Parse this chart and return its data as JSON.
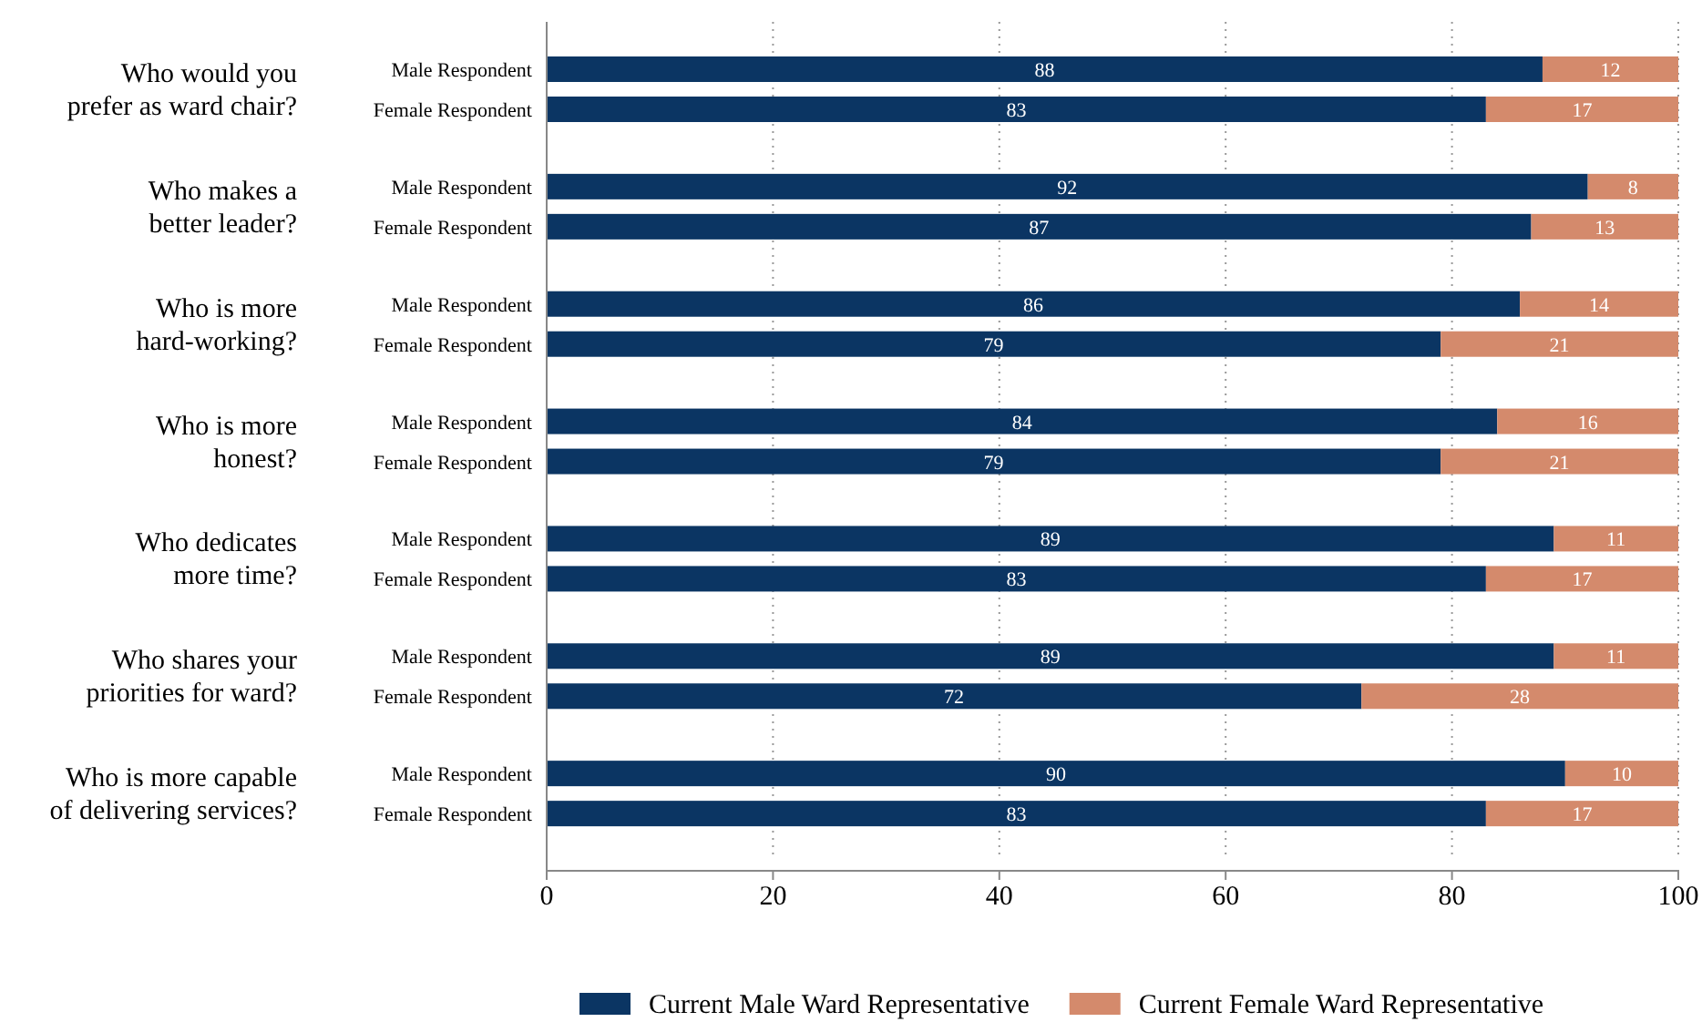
{
  "chart_data": {
    "type": "bar",
    "orientation": "horizontal",
    "stacked": true,
    "categories": [
      "Male Respondent",
      "Female Respondent",
      "Male Respondent",
      "Female Respondent",
      "Male Respondent",
      "Female Respondent",
      "Male Respondent",
      "Female Respondent",
      "Male Respondent",
      "Female Respondent",
      "Male Respondent",
      "Female Respondent",
      "Male Respondent",
      "Female Respondent"
    ],
    "series": [
      {
        "name": "Current Male Ward Representative",
        "color": "#0b3563",
        "values": [
          88,
          83,
          92,
          87,
          86,
          79,
          84,
          79,
          89,
          83,
          89,
          72,
          90,
          83
        ]
      },
      {
        "name": "Current Female Ward Representative",
        "color": "#d48a6c",
        "values": [
          12,
          17,
          8,
          13,
          14,
          21,
          16,
          21,
          11,
          17,
          11,
          28,
          10,
          17
        ]
      }
    ],
    "annotations": [
      "Who would you prefer as ward chair?",
      "Who makes a better leader?",
      "Who is more hard-working?",
      "Who is more honest?",
      "Who dedicates more time?",
      "Who shares your priorities for ward?",
      "Who is more capable of delivering services?"
    ],
    "xlim": [
      0,
      100
    ],
    "xticks": [
      0,
      20,
      40,
      60,
      80,
      100
    ],
    "grid": "x",
    "legend": "bottom",
    "data_labels": true
  }
}
